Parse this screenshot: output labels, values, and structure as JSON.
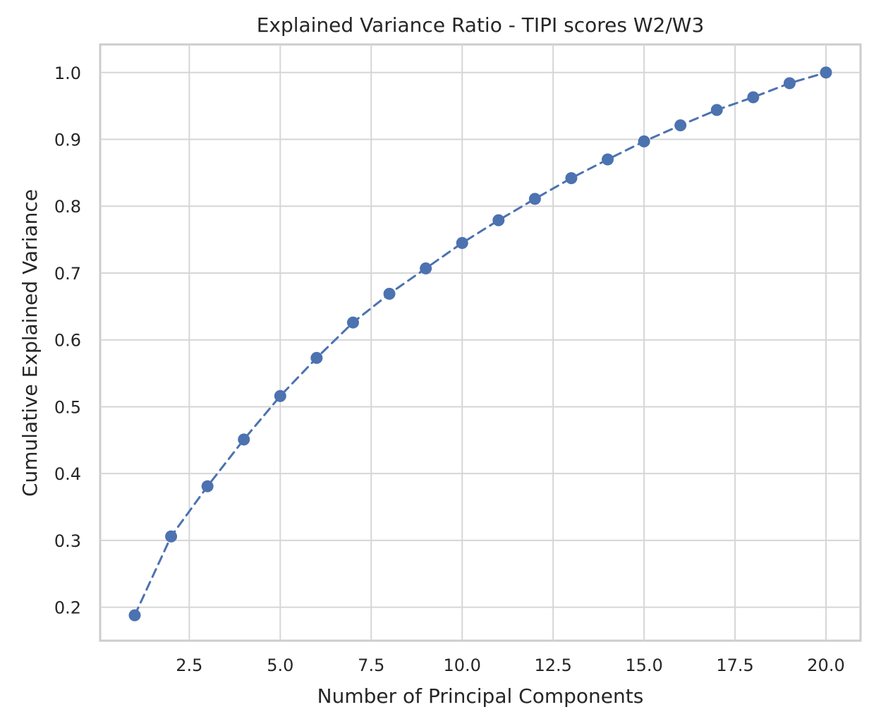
{
  "chart_data": {
    "type": "line",
    "title": "Explained Variance Ratio - TIPI scores W2/W3",
    "xlabel": "Number of Principal Components",
    "ylabel": "Cumulative Explained Variance",
    "xlim": [
      0.05,
      20.95
    ],
    "ylim": [
      0.15,
      1.042
    ],
    "xticks": [
      2.5,
      5.0,
      7.5,
      10.0,
      12.5,
      15.0,
      17.5,
      20.0
    ],
    "xtick_labels": [
      "2.5",
      "5.0",
      "7.5",
      "10.0",
      "12.5",
      "15.0",
      "17.5",
      "20.0"
    ],
    "yticks": [
      0.2,
      0.3,
      0.4,
      0.5,
      0.6,
      0.7,
      0.8,
      0.9,
      1.0
    ],
    "ytick_labels": [
      "0.2",
      "0.3",
      "0.4",
      "0.5",
      "0.6",
      "0.7",
      "0.8",
      "0.9",
      "1.0"
    ],
    "grid": true,
    "legend": null,
    "x": [
      1,
      2,
      3,
      4,
      5,
      6,
      7,
      8,
      9,
      10,
      11,
      12,
      13,
      14,
      15,
      16,
      17,
      18,
      19,
      20
    ],
    "series": [
      {
        "values": [
          0.188,
          0.306,
          0.381,
          0.451,
          0.516,
          0.573,
          0.626,
          0.669,
          0.707,
          0.745,
          0.779,
          0.811,
          0.842,
          0.87,
          0.897,
          0.921,
          0.944,
          0.963,
          0.984,
          1.0
        ],
        "color": "#4c72b0",
        "line_style": "dashed",
        "marker": "circle"
      }
    ]
  }
}
